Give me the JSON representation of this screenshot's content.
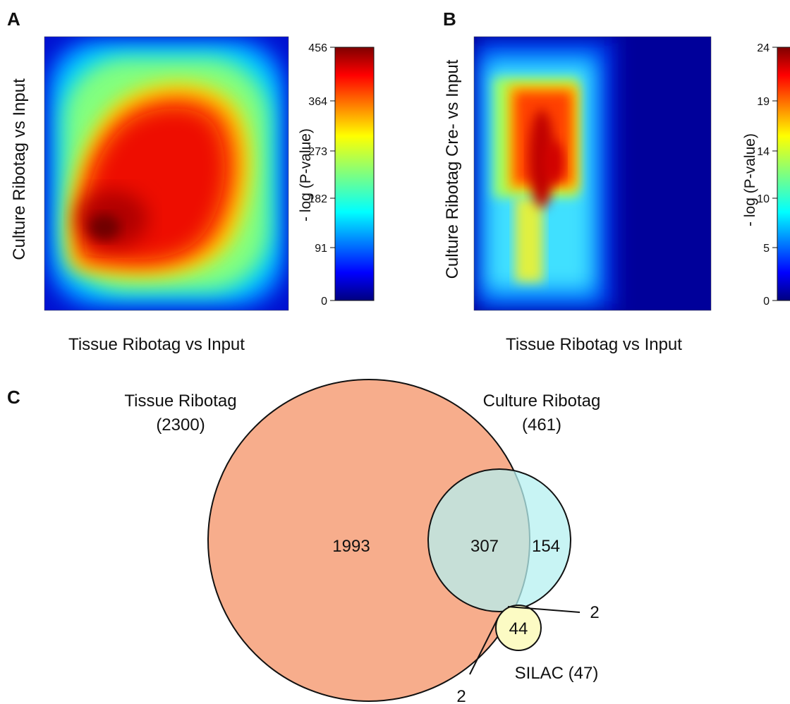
{
  "panels": {
    "A": "A",
    "B": "B",
    "C": "C"
  },
  "chart_data": [
    {
      "panel": "A",
      "type": "heatmap",
      "xlabel": "Tissue Ribotag vs Input",
      "ylabel": "Culture Ribotag vs Input",
      "colorbar_label": "- log (P-value)",
      "colorbar_ticks": [
        "456",
        "364",
        "273",
        "182",
        "91",
        "0"
      ],
      "colorbar_range": [
        0,
        456
      ],
      "colormap": "jet",
      "peak_value": 456
    },
    {
      "panel": "B",
      "type": "heatmap",
      "xlabel": "Tissue Ribotag vs Input",
      "ylabel": "Culture Ribotag Cre- vs Input",
      "colorbar_label": "- log (P-value)",
      "colorbar_ticks": [
        "24",
        "19",
        "14",
        "10",
        "5",
        "0"
      ],
      "colorbar_range": [
        0,
        24
      ],
      "colormap": "jet",
      "peak_value": 24
    },
    {
      "panel": "C",
      "type": "venn",
      "sets": [
        {
          "label": "Tissue Ribotag",
          "count_label": "(2300)",
          "size": 2300,
          "color": "#f7ad8c"
        },
        {
          "label": "Culture Ribotag",
          "count_label": "(461)",
          "size": 461,
          "color": "#c8f6f7"
        },
        {
          "label": "SILAC (47)",
          "size": 47,
          "color": "#fcfbc4"
        }
      ],
      "regions": {
        "tissue_only": "1993",
        "tissue_culture": "307",
        "culture_only": "154",
        "silac_only": "44",
        "culture_silac": "2",
        "tissue_silac": "2"
      }
    }
  ]
}
